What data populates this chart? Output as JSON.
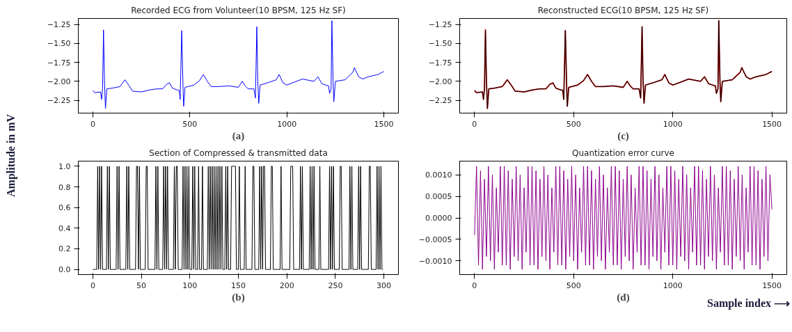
{
  "chart_data": [
    {
      "type": "line",
      "title": "Recorded ECG from Volunteer(10 BPSM, 125 Hz SF)",
      "ylabel": "Amplitude in mV",
      "annotations": [
        "(a)"
      ],
      "xlim": [
        -75,
        1575
      ],
      "ylim": [
        -2.42,
        -1.17
      ],
      "xticks": [
        0,
        500,
        1000,
        1500
      ],
      "yticks": [
        {
          "value": -2.25,
          "label": "−2.25"
        },
        {
          "value": -2.0,
          "label": "−2.00"
        },
        {
          "value": -1.75,
          "label": "−1.75"
        },
        {
          "value": -1.5,
          "label": "−1.50"
        },
        {
          "value": -1.25,
          "label": "−1.25"
        }
      ],
      "x": [
        0,
        10,
        40,
        45,
        50,
        55,
        60,
        65,
        72,
        100,
        140,
        165,
        185,
        205,
        250,
        300,
        330,
        360,
        380,
        395,
        410,
        430,
        445,
        450,
        458,
        465,
        468,
        475,
        520,
        550,
        570,
        590,
        610,
        650,
        700,
        750,
        770,
        785,
        800,
        830,
        838,
        845,
        850,
        855,
        862,
        900,
        945,
        960,
        980,
        1000,
        1050,
        1080,
        1140,
        1160,
        1180,
        1200,
        1215,
        1220,
        1228,
        1232,
        1238,
        1242,
        1250,
        1300,
        1340,
        1348,
        1370,
        1390,
        1420,
        1470,
        1500
      ],
      "series": [
        {
          "color": "#0000ff",
          "values": [
            -2.12,
            -2.15,
            -2.14,
            -2.24,
            -2.1,
            -1.32,
            -2.0,
            -2.36,
            -2.1,
            -2.09,
            -2.07,
            -1.98,
            -2.05,
            -2.13,
            -2.14,
            -2.11,
            -2.1,
            -2.1,
            -2.04,
            -2.02,
            -2.09,
            -2.11,
            -2.12,
            -2.24,
            -1.33,
            -2.1,
            -2.33,
            -2.08,
            -2.05,
            -1.99,
            -1.91,
            -2.0,
            -2.07,
            -2.07,
            -2.06,
            -2.08,
            -2.0,
            -2.06,
            -2.1,
            -2.1,
            -2.22,
            -1.28,
            -2.0,
            -2.29,
            -2.05,
            -2.02,
            -1.98,
            -1.91,
            -2.02,
            -2.05,
            -2.0,
            -1.97,
            -2.0,
            -1.94,
            -2.03,
            -2.05,
            -2.06,
            -2.16,
            -2.1,
            -1.2,
            -2.0,
            -2.27,
            -2.0,
            -1.98,
            -1.88,
            -1.82,
            -1.94,
            -1.97,
            -1.94,
            -1.91,
            -1.87
          ]
        }
      ]
    },
    {
      "type": "line",
      "title": "Section of Compressed & transmitted data",
      "annotations": [
        "(b)"
      ],
      "xlim": [
        -15,
        315
      ],
      "ylim": [
        -0.05,
        1.05
      ],
      "xticks": [
        0,
        50,
        100,
        150,
        200,
        250,
        300
      ],
      "yticks": [
        {
          "value": 0,
          "label": "0.0"
        },
        {
          "value": 0.2,
          "label": "0.2"
        },
        {
          "value": 0.4,
          "label": "0.4"
        },
        {
          "value": 0.6,
          "label": "0.6"
        },
        {
          "value": 0.8,
          "label": "0.8"
        },
        {
          "value": 1,
          "label": "1.0"
        }
      ],
      "x": [
        0,
        1,
        2,
        3,
        4,
        5,
        6,
        7,
        8,
        9,
        10,
        11,
        12,
        13,
        14,
        15,
        16,
        17,
        18,
        19,
        20,
        21,
        22,
        23,
        24,
        25,
        26,
        27,
        28,
        29,
        30,
        31,
        32,
        33,
        34,
        35,
        36,
        37,
        38,
        39,
        40,
        41,
        42,
        43,
        44,
        45,
        46,
        47,
        48,
        49,
        50,
        51,
        52,
        53,
        54,
        55,
        56,
        57,
        58,
        59,
        60,
        61,
        62,
        63,
        64,
        65,
        66,
        67,
        68,
        69,
        70,
        71,
        72,
        73,
        74,
        75,
        76,
        77,
        78,
        79,
        80,
        81,
        82,
        83,
        84,
        85,
        86,
        87,
        88,
        89,
        90,
        91,
        92,
        93,
        94,
        95,
        96,
        97,
        98,
        99,
        100,
        101,
        102,
        103,
        104,
        105,
        106,
        107,
        108,
        109,
        110,
        111,
        112,
        113,
        114,
        115,
        116,
        117,
        118,
        119,
        120,
        121,
        122,
        123,
        124,
        125,
        126,
        127,
        128,
        129,
        130,
        131,
        132,
        133,
        134,
        135,
        136,
        137,
        138,
        139,
        140,
        141,
        142,
        143,
        144,
        145,
        146,
        147,
        148,
        149,
        150,
        151,
        152,
        153,
        154,
        155,
        156,
        157,
        158,
        159,
        160,
        161,
        162,
        163,
        164,
        165,
        166,
        167,
        168,
        169,
        170,
        171,
        172,
        173,
        174,
        175,
        176,
        177,
        178,
        179,
        180,
        181,
        182,
        183,
        184,
        185,
        186,
        187,
        188,
        189,
        190,
        191,
        192,
        193,
        194,
        195,
        196,
        197,
        198,
        199,
        200,
        201,
        202,
        203,
        204,
        205,
        206,
        207,
        208,
        209,
        210,
        211,
        212,
        213,
        214,
        215,
        216,
        217,
        218,
        219,
        220,
        221,
        222,
        223,
        224,
        225,
        226,
        227,
        228,
        229,
        230,
        231,
        232,
        233,
        234,
        235,
        236,
        237,
        238,
        239,
        240,
        241,
        242,
        243,
        244,
        245,
        246,
        247,
        248,
        249,
        250,
        251,
        252,
        253,
        254,
        255,
        256,
        257,
        258,
        259,
        260,
        261,
        262,
        263,
        264,
        265,
        266,
        267,
        268,
        269,
        270,
        271,
        272,
        273,
        274,
        275,
        276,
        277,
        278,
        279,
        280,
        281,
        282,
        283,
        284,
        285,
        286,
        287,
        288,
        289,
        290,
        291,
        292,
        293,
        294,
        295,
        296,
        297,
        298,
        299
      ],
      "series": [
        {
          "color": "#000000",
          "values": [
            0,
            0,
            0,
            0,
            0,
            1,
            0,
            1,
            0,
            1,
            0,
            0,
            0,
            0,
            0,
            1,
            0,
            1,
            0,
            0,
            0,
            0,
            0,
            0,
            0,
            1,
            0,
            1,
            0,
            0,
            0,
            0,
            0,
            0,
            0,
            1,
            0,
            1,
            0,
            0,
            0,
            0,
            0,
            0,
            0,
            1,
            1,
            0,
            1,
            0,
            0,
            0,
            0,
            0,
            0,
            1,
            1,
            0,
            0,
            0,
            0,
            0,
            0,
            0,
            0,
            1,
            0,
            1,
            0,
            0,
            0,
            0,
            0,
            1,
            0,
            1,
            0,
            1,
            0,
            0,
            0,
            0,
            0,
            0,
            1,
            0,
            1,
            1,
            0,
            0,
            0,
            0,
            0,
            1,
            0,
            1,
            0,
            1,
            0,
            1,
            0,
            0,
            0,
            1,
            0,
            1,
            0,
            0,
            0,
            1,
            0,
            0,
            0,
            1,
            0,
            0,
            0,
            0,
            0,
            1,
            0,
            1,
            0,
            1,
            0,
            1,
            0,
            1,
            0,
            1,
            0,
            1,
            0,
            1,
            0,
            0,
            0,
            1,
            0,
            1,
            0,
            0,
            0,
            1,
            1,
            1,
            1,
            1,
            0,
            0,
            0,
            1,
            0,
            0,
            0,
            0,
            0,
            1,
            0,
            0,
            0,
            0,
            0,
            0,
            0,
            1,
            1,
            0,
            0,
            0,
            0,
            0,
            1,
            0,
            1,
            0,
            1,
            1,
            0,
            0,
            0,
            0,
            0,
            0,
            1,
            1,
            0,
            0,
            0,
            0,
            0,
            0,
            0,
            0,
            1,
            0,
            0,
            0,
            0,
            0,
            0,
            0,
            0,
            0,
            1,
            1,
            1,
            0,
            0,
            0,
            0,
            0,
            0,
            0,
            1,
            0,
            1,
            0,
            0,
            0,
            0,
            0,
            0,
            0,
            1,
            0,
            1,
            0,
            1,
            0,
            0,
            0,
            0,
            0,
            1,
            0,
            0,
            0,
            0,
            0,
            0,
            0,
            0,
            0,
            1,
            0,
            1,
            0,
            1,
            0,
            0,
            0,
            0,
            0,
            0,
            1,
            1,
            0,
            0,
            0,
            0,
            0,
            0,
            0,
            0,
            1,
            0,
            1,
            0,
            0,
            0,
            0,
            0,
            0,
            1,
            0,
            1,
            0,
            0,
            0,
            0,
            0,
            0,
            0,
            0,
            1,
            1,
            0,
            0,
            0,
            0,
            0,
            0,
            1,
            0,
            1,
            0,
            1,
            0,
            0
          ]
        }
      ]
    },
    {
      "type": "line",
      "title": "Reconstructed ECG(10 BPSM, 125 Hz SF)",
      "annotations": [
        "(c)"
      ],
      "xlim": [
        -75,
        1575
      ],
      "ylim": [
        -2.42,
        -1.17
      ],
      "xticks": [
        0,
        500,
        1000,
        1500
      ],
      "yticks": [
        {
          "value": -2.25,
          "label": "−2.25"
        },
        {
          "value": -2.0,
          "label": "−2.00"
        },
        {
          "value": -1.75,
          "label": "−1.75"
        },
        {
          "value": -1.5,
          "label": "−1.50"
        },
        {
          "value": -1.25,
          "label": "−1.25"
        }
      ],
      "x": [
        0,
        10,
        40,
        45,
        50,
        55,
        60,
        65,
        72,
        100,
        140,
        165,
        185,
        205,
        250,
        300,
        330,
        360,
        380,
        395,
        410,
        430,
        445,
        450,
        458,
        465,
        468,
        475,
        520,
        550,
        570,
        590,
        610,
        650,
        700,
        750,
        770,
        785,
        800,
        830,
        838,
        845,
        850,
        855,
        862,
        900,
        945,
        960,
        980,
        1000,
        1050,
        1080,
        1140,
        1160,
        1180,
        1200,
        1215,
        1220,
        1228,
        1232,
        1238,
        1242,
        1250,
        1300,
        1340,
        1348,
        1370,
        1390,
        1420,
        1470,
        1500
      ],
      "series": [
        {
          "color": "#cc0000",
          "values": [
            -2.12,
            -2.15,
            -2.14,
            -2.24,
            -2.1,
            -1.32,
            -2.0,
            -2.36,
            -2.1,
            -2.09,
            -2.07,
            -1.98,
            -2.05,
            -2.13,
            -2.14,
            -2.11,
            -2.1,
            -2.1,
            -2.04,
            -2.02,
            -2.09,
            -2.11,
            -2.12,
            -2.24,
            -1.33,
            -2.1,
            -2.33,
            -2.08,
            -2.05,
            -1.99,
            -1.91,
            -2.0,
            -2.07,
            -2.07,
            -2.06,
            -2.08,
            -2.0,
            -2.06,
            -2.1,
            -2.1,
            -2.22,
            -1.28,
            -2.0,
            -2.29,
            -2.05,
            -2.02,
            -1.98,
            -1.91,
            -2.02,
            -2.05,
            -2.0,
            -1.97,
            -2.0,
            -1.94,
            -2.03,
            -2.05,
            -2.06,
            -2.16,
            -2.1,
            -1.2,
            -2.0,
            -2.27,
            -2.0,
            -1.98,
            -1.88,
            -1.82,
            -1.94,
            -1.97,
            -1.94,
            -1.91,
            -1.87
          ]
        },
        {
          "color": "#000000",
          "values": [
            -2.12,
            -2.15,
            -2.14,
            -2.24,
            -2.1,
            -1.32,
            -2.0,
            -2.36,
            -2.1,
            -2.09,
            -2.07,
            -1.98,
            -2.05,
            -2.13,
            -2.14,
            -2.11,
            -2.1,
            -2.1,
            -2.04,
            -2.02,
            -2.09,
            -2.11,
            -2.12,
            -2.24,
            -1.33,
            -2.1,
            -2.33,
            -2.08,
            -2.05,
            -1.99,
            -1.91,
            -2.0,
            -2.07,
            -2.07,
            -2.06,
            -2.08,
            -2.0,
            -2.06,
            -2.1,
            -2.1,
            -2.22,
            -1.28,
            -2.0,
            -2.29,
            -2.05,
            -2.02,
            -1.98,
            -1.91,
            -2.02,
            -2.05,
            -2.0,
            -1.97,
            -2.0,
            -1.94,
            -2.03,
            -2.05,
            -2.06,
            -2.16,
            -2.1,
            -1.2,
            -2.0,
            -2.27,
            -2.0,
            -1.98,
            -1.88,
            -1.82,
            -1.94,
            -1.97,
            -1.94,
            -1.91,
            -1.87
          ]
        }
      ]
    },
    {
      "type": "line",
      "title": "Quantization error curve",
      "xlabel": "Sample index ⟶",
      "annotations": [
        "(d)"
      ],
      "xlim": [
        -75,
        1575
      ],
      "ylim": [
        -0.00132,
        0.00132
      ],
      "xticks": [
        0,
        500,
        1000,
        1500
      ],
      "yticks": [
        {
          "value": -0.001,
          "label": "−0.0010"
        },
        {
          "value": -0.0005,
          "label": "−0.0005"
        },
        {
          "value": 0,
          "label": "0.0000"
        },
        {
          "value": 0.0005,
          "label": "0.0005"
        },
        {
          "value": 0.001,
          "label": "0.0010"
        }
      ],
      "x": [
        0,
        10,
        20,
        30,
        40,
        50,
        60,
        70,
        80,
        90,
        100,
        110,
        120,
        130,
        140,
        150,
        160,
        170,
        180,
        190,
        200,
        210,
        220,
        230,
        240,
        250,
        260,
        270,
        280,
        290,
        300,
        310,
        320,
        330,
        340,
        350,
        360,
        370,
        380,
        390,
        400,
        410,
        420,
        430,
        440,
        450,
        460,
        470,
        480,
        490,
        500,
        510,
        520,
        530,
        540,
        550,
        560,
        570,
        580,
        590,
        600,
        610,
        620,
        630,
        640,
        650,
        660,
        670,
        680,
        690,
        700,
        710,
        720,
        730,
        740,
        750,
        760,
        770,
        780,
        790,
        800,
        810,
        820,
        830,
        840,
        850,
        860,
        870,
        880,
        890,
        900,
        910,
        920,
        930,
        940,
        950,
        960,
        970,
        980,
        990,
        1000,
        1010,
        1020,
        1030,
        1040,
        1050,
        1060,
        1070,
        1080,
        1090,
        1100,
        1110,
        1120,
        1130,
        1140,
        1150,
        1160,
        1170,
        1180,
        1190,
        1200,
        1210,
        1220,
        1230,
        1240,
        1250,
        1260,
        1270,
        1280,
        1290,
        1300,
        1310,
        1320,
        1330,
        1340,
        1350,
        1360,
        1370,
        1380,
        1390,
        1400,
        1410,
        1420,
        1430,
        1440,
        1450,
        1460,
        1470,
        1480,
        1490,
        1500
      ],
      "series": [
        {
          "color": "#8b008b",
          "values": [
            -0.0004,
            0.0012,
            -0.0011,
            0.0011,
            -0.0012,
            0.0009,
            -0.0009,
            0.0012,
            -0.001,
            0.001,
            -0.0012,
            0.0007,
            -0.0008,
            0.0012,
            -0.0011,
            0.0012,
            -0.0011,
            0.0011,
            -0.0012,
            0.0009,
            -0.0009,
            0.0012,
            -0.001,
            0.001,
            -0.0012,
            0.0007,
            -0.0008,
            0.0012,
            -0.0011,
            0.0012,
            -0.0011,
            0.0011,
            -0.0012,
            0.0009,
            -0.0009,
            0.0012,
            -0.001,
            0.001,
            -0.0012,
            0.0007,
            -0.0008,
            0.0012,
            -0.0011,
            0.0012,
            -0.0011,
            0.0011,
            -0.0012,
            0.0009,
            -0.0009,
            0.0012,
            -0.001,
            0.001,
            -0.0012,
            0.0007,
            -0.0008,
            0.0012,
            -0.0011,
            0.0012,
            -0.0011,
            0.0011,
            -0.0012,
            0.0009,
            -0.0009,
            0.0012,
            -0.001,
            0.001,
            -0.0012,
            0.0007,
            -0.0008,
            0.0012,
            -0.0011,
            0.0012,
            -0.0011,
            0.0011,
            -0.0012,
            0.0009,
            -0.0009,
            0.0012,
            -0.001,
            0.001,
            -0.0012,
            0.0007,
            -0.0008,
            0.0012,
            -0.0011,
            0.0012,
            -0.0011,
            0.0011,
            -0.0012,
            0.0009,
            -0.0009,
            0.0012,
            -0.001,
            0.001,
            -0.0012,
            0.0007,
            -0.0008,
            0.0012,
            -0.0011,
            0.0012,
            -0.0011,
            0.0011,
            -0.0012,
            0.0009,
            -0.0009,
            0.0012,
            -0.001,
            0.001,
            -0.0012,
            0.0007,
            -0.0008,
            0.0012,
            -0.0011,
            0.0012,
            -0.0011,
            0.0011,
            -0.0012,
            0.0009,
            -0.0009,
            0.0012,
            -0.001,
            0.001,
            -0.0012,
            0.0007,
            -0.0008,
            0.0012,
            -0.0011,
            0.0012,
            -0.0011,
            0.0011,
            -0.0012,
            0.0009,
            -0.0009,
            0.0012,
            -0.001,
            0.001,
            -0.0012,
            0.0007,
            -0.0008,
            0.0012,
            -0.0011,
            0.0012,
            -0.0011,
            0.0011,
            -0.0012,
            0.0009,
            -0.0009,
            0.0012,
            -0.001,
            0.001,
            0.0002
          ]
        }
      ]
    }
  ]
}
